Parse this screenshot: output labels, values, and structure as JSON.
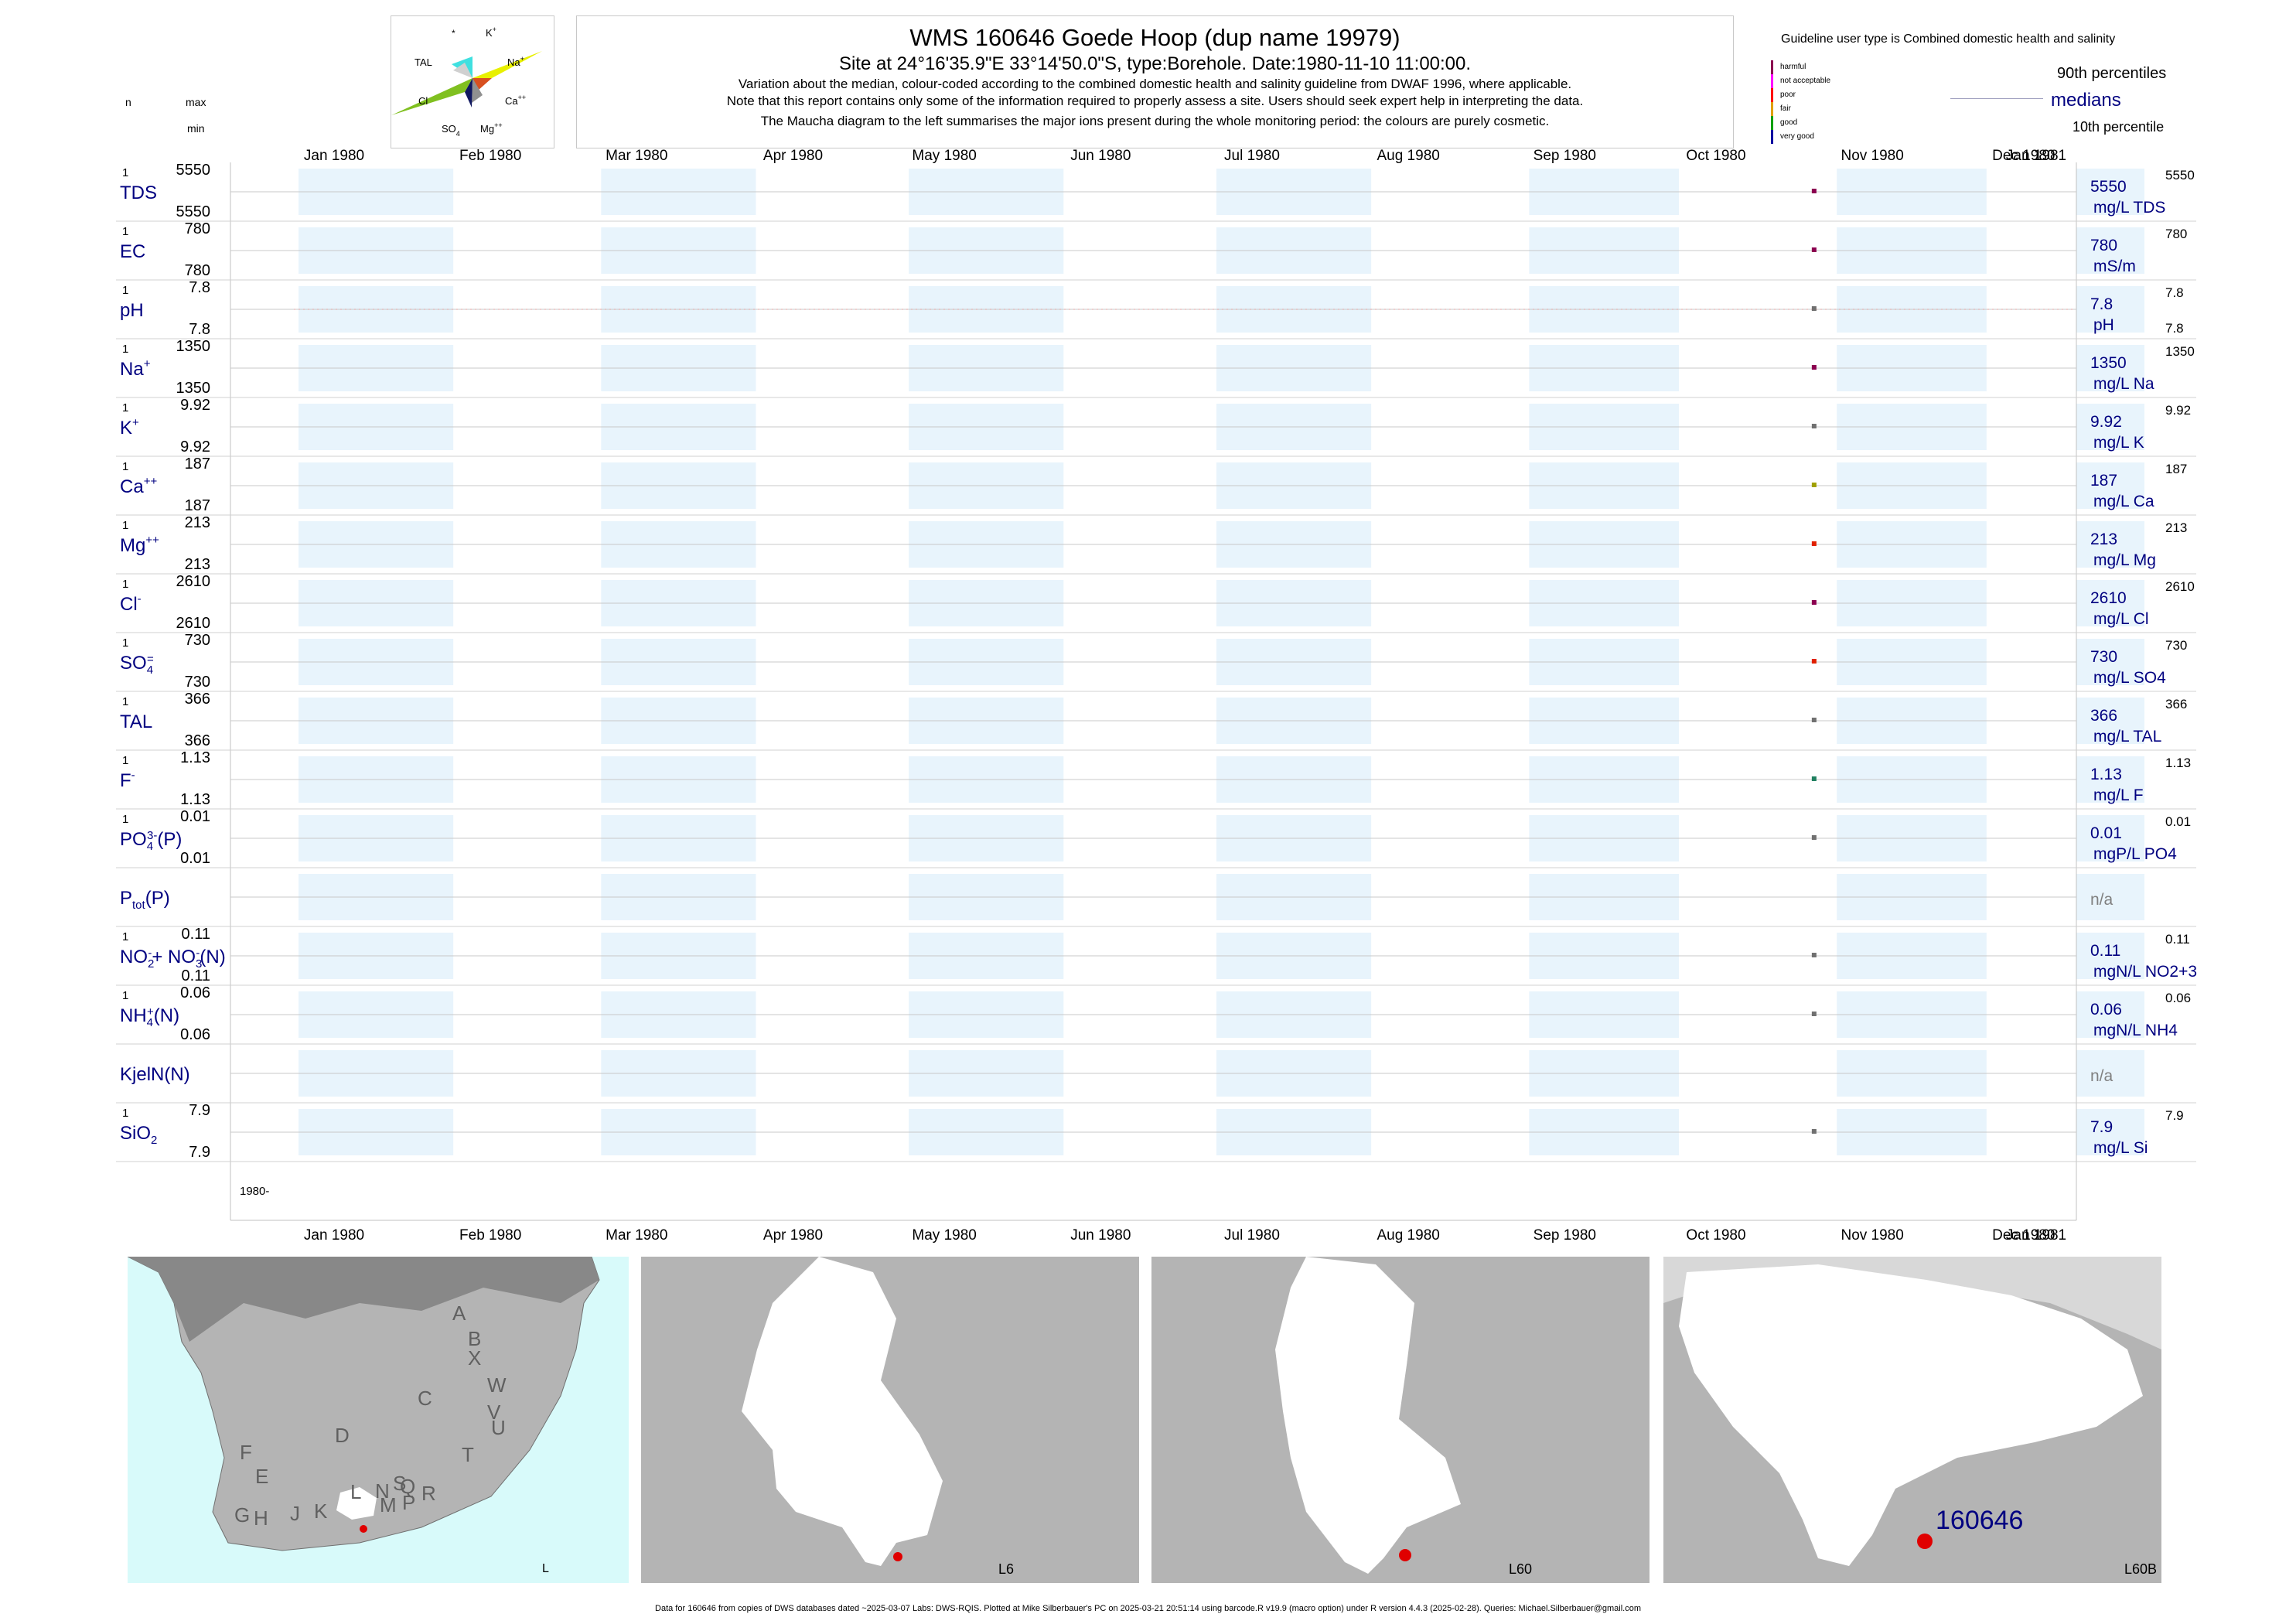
{
  "header": {
    "title": "WMS 160646  Goede Hoop (dup name 19979)",
    "subtitle": "Site at 24°16'35.9\"E 33°14'50.0\"S, type:Borehole. Date:1980-11-10 11:00:00.",
    "note1": "Variation about the median,  colour-coded according to the combined domestic health and salinity guideline from DWAF 1996, where applicable.",
    "note2": "Note that this report contains only some of the information required to properly assess a site. Users should seek expert help in interpreting the data.",
    "note3": "The Maucha diagram to the left summarises the major ions present during the whole monitoring period: the colours are purely cosmetic."
  },
  "left_header": {
    "n": "n",
    "max": "max",
    "min": "min"
  },
  "maucha": {
    "labels": {
      "star": "*",
      "K": "K",
      "K_sup": "+",
      "TAL": "TAL",
      "Na": "Na",
      "Na_sup": "+",
      "Cl": "Cl",
      "Ca": "Ca",
      "Ca_sup": "++",
      "SO": "SO",
      "SO_sub": "4",
      "Mg": "Mg",
      "Mg_sup": "++"
    },
    "colors": {
      "K": "#40e0e0",
      "Na": "#e8f000",
      "Cl": "#80c020",
      "Ca": "#d85020",
      "SO4": "#101860",
      "Mg": "#909090",
      "TAL": "#b0b0b0"
    }
  },
  "legend": {
    "title": "Guideline user type is Combined domestic health and salinity",
    "classes": [
      {
        "label": "harmful",
        "color": "#8b0050"
      },
      {
        "label": "not acceptable",
        "color": "#ff00ff"
      },
      {
        "label": "poor",
        "color": "#ff0000"
      },
      {
        "label": "fair",
        "color": "#e0a000"
      },
      {
        "label": "good",
        "color": "#00a000"
      },
      {
        "label": "very good",
        "color": "#0000a0"
      }
    ],
    "p90": "90th percentiles",
    "medians": "medians",
    "p10": "10th percentile"
  },
  "chart_data": {
    "type": "scatter",
    "x_range": [
      "1980-01-01",
      "1981-01-01"
    ],
    "months": [
      "Jan 1980",
      "Feb 1980",
      "Mar 1980",
      "Apr 1980",
      "May 1980",
      "Jun 1980",
      "Jul 1980",
      "Aug 1980",
      "Sep 1980",
      "Oct 1980",
      "Nov 1980",
      "Dec 1980",
      "Jan 1981"
    ],
    "sample_date": "1980-11-10",
    "year_label": "1980-",
    "rows": [
      {
        "name": "TDS",
        "sup": "",
        "sub": "",
        "tail": "",
        "n": "1",
        "max": "5550",
        "min": "5550",
        "median": "5550",
        "unit": "mg/L TDS",
        "p90": "5550",
        "p10": "",
        "value": 5550,
        "color": "#8b0050"
      },
      {
        "name": "EC",
        "sup": "",
        "sub": "",
        "tail": "",
        "n": "1",
        "max": "780",
        "min": "780",
        "median": "780",
        "unit": "mS/m",
        "p90": "780",
        "p10": "",
        "value": 780,
        "color": "#8b0050"
      },
      {
        "name": "pH",
        "sup": "",
        "sub": "",
        "tail": "",
        "n": "1",
        "max": "7.8",
        "min": "7.8",
        "median": "7.8",
        "unit": "pH",
        "p90": "7.8",
        "p10": "7.8",
        "value": 7.8,
        "color": "#707070",
        "guide": true
      },
      {
        "name": "Na",
        "sup": "+",
        "sub": "",
        "tail": "",
        "n": "1",
        "max": "1350",
        "min": "1350",
        "median": "1350",
        "unit": "mg/L Na",
        "p90": "1350",
        "p10": "",
        "value": 1350,
        "color": "#8b0050"
      },
      {
        "name": "K",
        "sup": "+",
        "sub": "",
        "tail": "",
        "n": "1",
        "max": "9.92",
        "min": "9.92",
        "median": "9.92",
        "unit": "mg/L K",
        "p90": "9.92",
        "p10": "",
        "value": 9.92,
        "color": "#707070"
      },
      {
        "name": "Ca",
        "sup": "++",
        "sub": "",
        "tail": "",
        "n": "1",
        "max": "187",
        "min": "187",
        "median": "187",
        "unit": "mg/L Ca",
        "p90": "187",
        "p10": "",
        "value": 187,
        "color": "#a0a000"
      },
      {
        "name": "Mg",
        "sup": "++",
        "sub": "",
        "tail": "",
        "n": "1",
        "max": "213",
        "min": "213",
        "median": "213",
        "unit": "mg/L Mg",
        "p90": "213",
        "p10": "",
        "value": 213,
        "color": "#e02000"
      },
      {
        "name": "Cl",
        "sup": "-",
        "sub": "",
        "tail": "",
        "n": "1",
        "max": "2610",
        "min": "2610",
        "median": "2610",
        "unit": "mg/L Cl",
        "p90": "2610",
        "p10": "",
        "value": 2610,
        "color": "#8b0050"
      },
      {
        "name": "SO",
        "sup": "=",
        "sub": "4",
        "tail": "",
        "n": "1",
        "max": "730",
        "min": "730",
        "median": "730",
        "unit": "mg/L SO4",
        "p90": "730",
        "p10": "",
        "value": 730,
        "color": "#e02000"
      },
      {
        "name": "TAL",
        "sup": "",
        "sub": "",
        "tail": "",
        "n": "1",
        "max": "366",
        "min": "366",
        "median": "366",
        "unit": "mg/L TAL",
        "p90": "366",
        "p10": "",
        "value": 366,
        "color": "#707070"
      },
      {
        "name": "F",
        "sup": "-",
        "sub": "",
        "tail": "",
        "n": "1",
        "max": "1.13",
        "min": "1.13",
        "median": "1.13",
        "unit": "mg/L F",
        "p90": "1.13",
        "p10": "",
        "value": 1.13,
        "color": "#208060"
      },
      {
        "name": "PO",
        "sup": "3-",
        "sub": "4",
        "tail": "(P)",
        "n": "1",
        "max": "0.01",
        "min": "0.01",
        "median": "0.01",
        "unit": "mgP/L PO4",
        "p90": "0.01",
        "p10": "",
        "value": 0.01,
        "color": "#707070"
      },
      {
        "name": "P",
        "sup": "",
        "sub": "tot",
        "tail": "(P)",
        "n": "",
        "max": "",
        "min": "",
        "median": "n/a",
        "unit": "",
        "p90": "",
        "p10": "",
        "value": null,
        "color": "#707070"
      },
      {
        "name": "NO",
        "sup": "-",
        "sub": "2",
        "tail": "+ NO",
        "sup2": "-",
        "sub2": "3",
        "tail2": "(N)",
        "n": "1",
        "max": "0.11",
        "min": "0.11",
        "median": "0.11",
        "unit": "mgN/L NO2+3",
        "p90": "0.11",
        "p10": "",
        "value": 0.11,
        "color": "#707070"
      },
      {
        "name": "NH",
        "sup": "+",
        "sub": "4",
        "tail": "(N)",
        "n": "1",
        "max": "0.06",
        "min": "0.06",
        "median": "0.06",
        "unit": "mgN/L NH4",
        "p90": "0.06",
        "p10": "",
        "value": 0.06,
        "color": "#707070"
      },
      {
        "name": "KjelN(N)",
        "sup": "",
        "sub": "",
        "tail": "",
        "n": "",
        "max": "",
        "min": "",
        "median": "n/a",
        "unit": "",
        "p90": "",
        "p10": "",
        "value": null,
        "color": "#707070"
      },
      {
        "name": "SiO",
        "sup": "",
        "sub": "2",
        "tail": "",
        "n": "1",
        "max": "7.9",
        "min": "7.9",
        "median": "7.9",
        "unit": "mg/L Si",
        "p90": "7.9",
        "p10": "",
        "value": 7.9,
        "color": "#707070"
      }
    ]
  },
  "maps": [
    {
      "label": "L",
      "regions": [
        "A",
        "B",
        "X",
        "W",
        "C",
        "V",
        "U",
        "D",
        "T",
        "F",
        "E",
        "S",
        "R",
        "Q",
        "N",
        "L",
        "M",
        "P",
        "J",
        "K",
        "H",
        "G"
      ]
    },
    {
      "label": "L6"
    },
    {
      "label": "L60"
    },
    {
      "label": "L60B",
      "site": "160646"
    }
  ],
  "footer": "Data for 160646 from copies of DWS databases dated ~2025-03-07 Labs: DWS-RQIS. Plotted at Mike Silberbauer's PC on 2025-03-21 20:51:14 using barcode.R v19.9 (macro option) under R version 4.4.3 (2025-02-28). Queries: Michael.Silberbauer@gmail.com"
}
